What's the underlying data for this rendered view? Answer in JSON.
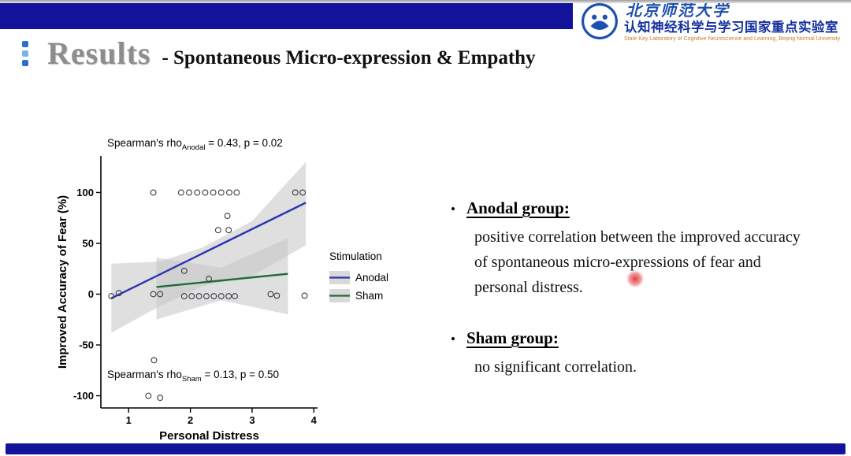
{
  "slide": {
    "title_main": "Results",
    "title_sub": "- Spontaneous Micro-expression & Empathy",
    "bullet_glyph": "•"
  },
  "header": {
    "university_name": "北京师范大学",
    "lab_name": "认知神经科学与学习国家重点实验室",
    "lab_subtitle": "State Key Laboratory of Cognitive Neuroscience and Learning, Beijing Normal University"
  },
  "colors": {
    "bar_blue": "#12129b",
    "anodal_blue": "#2b35af",
    "sham_green": "#1e6b3c",
    "band_gray": "#c4c4c4",
    "title_gray": "#8d8d8d",
    "logo_blue": "#1d4fae",
    "laser_red": "#e13737"
  },
  "bullets": [
    {
      "heading": "Anodal group:",
      "body": "positive correlation between the improved accuracy of spontaneous micro-expressions of fear and personal distress."
    },
    {
      "heading": "Sham group:",
      "body": "no significant correlation."
    }
  ],
  "chart_data": {
    "type": "scatter",
    "title": "",
    "xlabel": "Personal Distress",
    "ylabel": "Improved Accuracy of Fear (%)",
    "xlim": [
      0.55,
      4.06
    ],
    "ylim": [
      -112,
      136
    ],
    "xticks": [
      1,
      2,
      3,
      4
    ],
    "yticks": [
      -100,
      -50,
      0,
      50,
      100
    ],
    "grid": false,
    "legend": {
      "title": "Stimulation",
      "position": "right",
      "entries": [
        {
          "label": "Anodal",
          "color": "#2b35af"
        },
        {
          "label": "Sham",
          "color": "#1e6b3c"
        }
      ]
    },
    "annotation_top": {
      "prefix": "Spearman's rho",
      "sub": "Anodal",
      "suffix": " = 0.43, p = 0.02"
    },
    "annotation_bottom": {
      "prefix": "Spearman's rho",
      "sub": "Sham",
      "suffix": " = 0.13, p = 0.50"
    },
    "series": [
      {
        "name": "Anodal",
        "color": "#2b35af",
        "line": [
          [
            0.72,
            -4
          ],
          [
            3.87,
            90
          ]
        ],
        "band": {
          "upper": [
            [
              0.72,
              30
            ],
            [
              1.5,
              32
            ],
            [
              2.2,
              46
            ],
            [
              3.0,
              72
            ],
            [
              3.87,
              130
            ]
          ],
          "lower": [
            [
              0.72,
              -38
            ],
            [
              1.5,
              -12
            ],
            [
              2.2,
              8
            ],
            [
              3.0,
              18
            ],
            [
              3.87,
              48
            ]
          ]
        }
      },
      {
        "name": "Sham",
        "color": "#1e6b3c",
        "line": [
          [
            1.45,
            7
          ],
          [
            3.58,
            20
          ]
        ],
        "band": {
          "upper": [
            [
              1.45,
              36
            ],
            [
              2.5,
              26
            ],
            [
              3.58,
              55
            ]
          ],
          "lower": [
            [
              1.45,
              -25
            ],
            [
              2.5,
              -6
            ],
            [
              3.58,
              -20
            ]
          ]
        }
      }
    ],
    "points": [
      [
        1.4,
        100
      ],
      [
        1.85,
        100
      ],
      [
        1.98,
        100
      ],
      [
        2.11,
        100
      ],
      [
        2.24,
        100
      ],
      [
        2.37,
        100
      ],
      [
        2.5,
        100
      ],
      [
        2.63,
        100
      ],
      [
        2.75,
        100
      ],
      [
        3.7,
        100
      ],
      [
        3.82,
        100
      ],
      [
        2.6,
        77
      ],
      [
        2.45,
        63
      ],
      [
        2.62,
        63
      ],
      [
        1.9,
        23
      ],
      [
        2.3,
        15
      ],
      [
        0.72,
        -2
      ],
      [
        0.84,
        1
      ],
      [
        1.4,
        0
      ],
      [
        1.51,
        0
      ],
      [
        1.9,
        -2
      ],
      [
        2.02,
        -2
      ],
      [
        2.14,
        -2
      ],
      [
        2.26,
        -2
      ],
      [
        2.38,
        -2
      ],
      [
        2.5,
        -2
      ],
      [
        2.62,
        -2
      ],
      [
        2.72,
        -2
      ],
      [
        3.3,
        0
      ],
      [
        3.4,
        -1.5
      ],
      [
        3.85,
        -1.5
      ],
      [
        1.41,
        -65
      ],
      [
        1.32,
        -100
      ],
      [
        1.51,
        -102
      ]
    ]
  }
}
